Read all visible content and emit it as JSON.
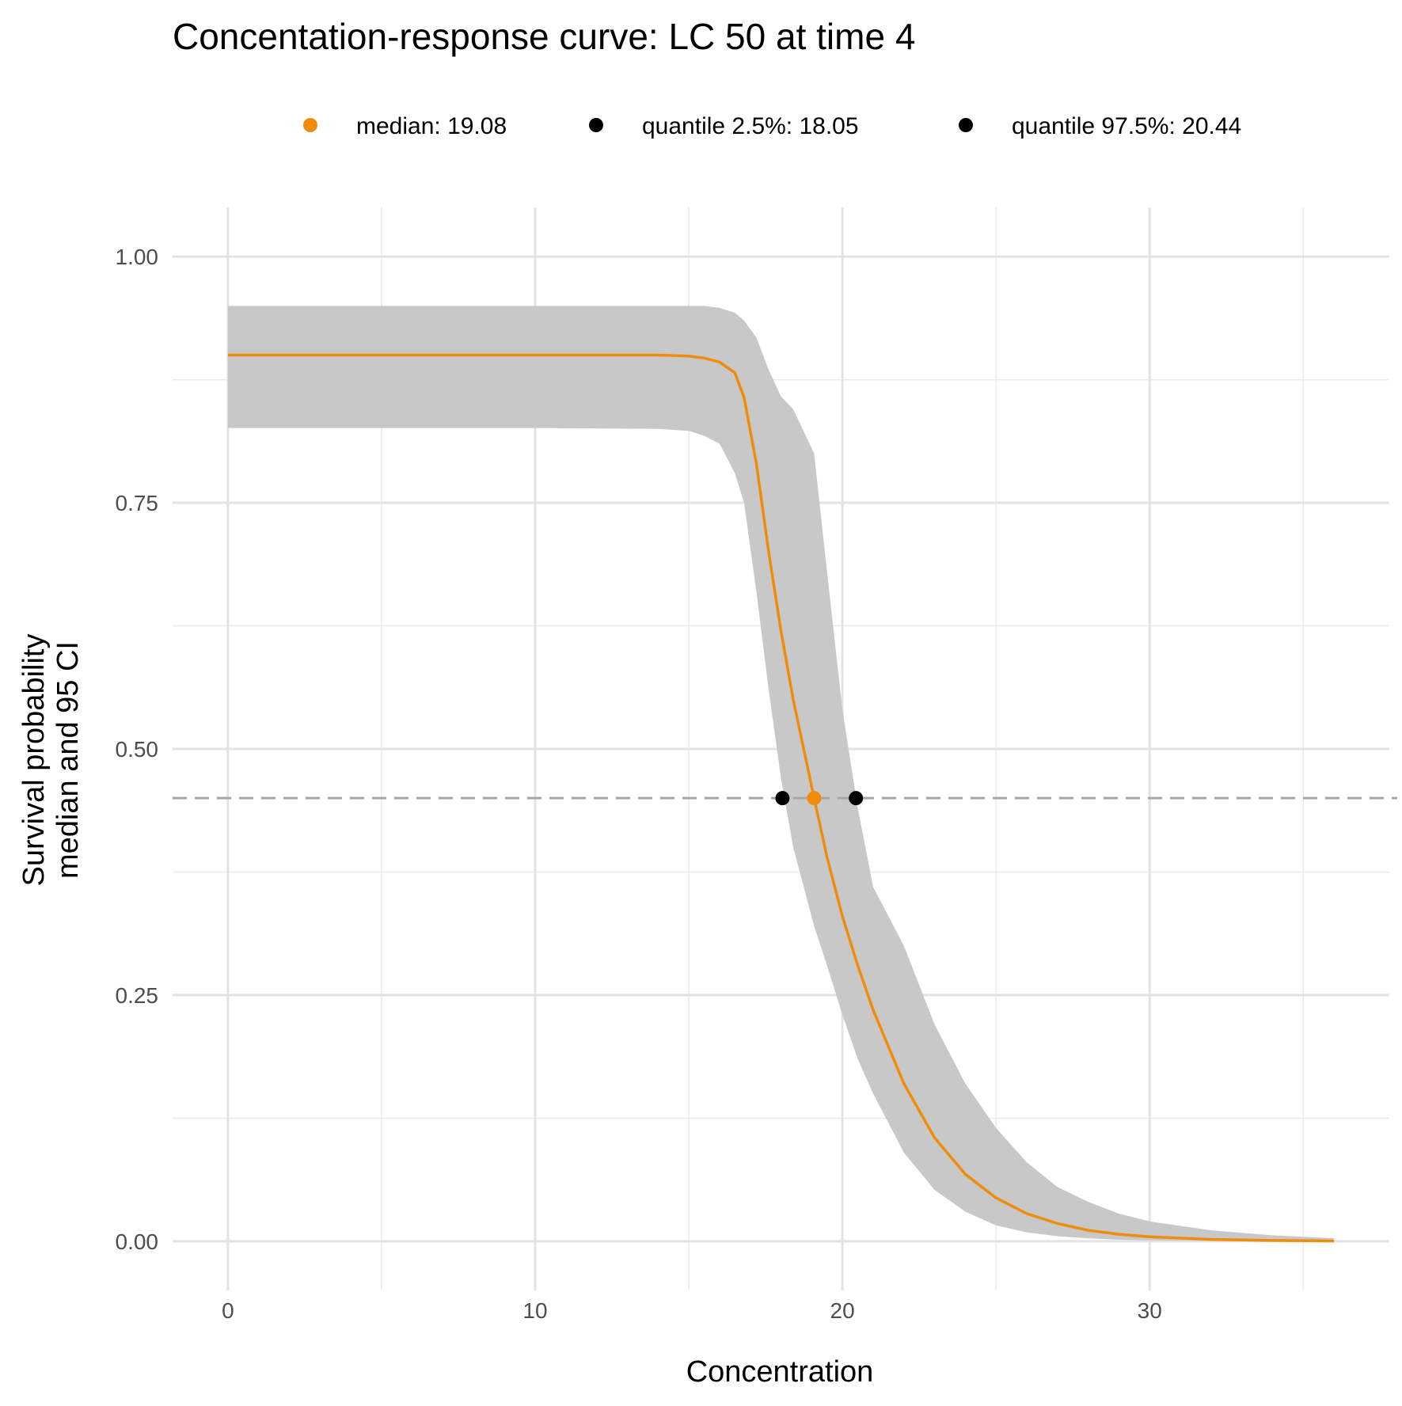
{
  "chart_data": {
    "type": "line",
    "title": "Concentation-response curve: LC 50  at time 4",
    "xlabel": "Concentration",
    "ylabel_lines": [
      "Survival probability",
      "median and 95 CI"
    ],
    "xlim": [
      -1.8,
      37.8
    ],
    "ylim": [
      -0.05,
      1.05
    ],
    "x_ticks": [
      0,
      10,
      20,
      30
    ],
    "x_tick_labels": [
      "0",
      "10",
      "20",
      "30"
    ],
    "y_ticks": [
      0,
      0.25,
      0.5,
      0.75,
      1
    ],
    "y_tick_labels": [
      "0.00",
      "0.25",
      "0.50",
      "0.75",
      "1.00"
    ],
    "grid": true,
    "legend_position": "top",
    "legend": [
      {
        "label": "median:  19.08",
        "color": "#f08c0a"
      },
      {
        "label": "quantile 2.5%:  18.05",
        "color": "#000000"
      },
      {
        "label": "quantile 97.5%:  20.44",
        "color": "#000000"
      }
    ],
    "median_curve": {
      "name": "median",
      "color": "#f08c0a",
      "x": [
        0,
        5,
        10,
        14,
        15,
        15.5,
        16,
        16.5,
        16.8,
        17.2,
        17.6,
        18.0,
        18.4,
        19.08,
        19.5,
        20,
        20.5,
        21,
        22,
        23,
        24,
        25,
        26,
        27,
        28,
        29,
        30,
        32,
        34,
        36
      ],
      "y": [
        0.9,
        0.9,
        0.9,
        0.9,
        0.899,
        0.897,
        0.893,
        0.882,
        0.857,
        0.79,
        0.7,
        0.62,
        0.55,
        0.45,
        0.39,
        0.33,
        0.28,
        0.235,
        0.16,
        0.105,
        0.068,
        0.044,
        0.028,
        0.018,
        0.011,
        0.007,
        0.0045,
        0.0018,
        0.0007,
        0.0002
      ]
    },
    "ci_band": {
      "color": "#c8c8c8",
      "x": [
        0,
        5,
        10,
        14,
        15,
        15.5,
        16,
        16.5,
        16.8,
        17.2,
        17.6,
        18.0,
        18.4,
        19.08,
        19.5,
        20,
        20.5,
        21,
        22,
        23,
        24,
        25,
        26,
        27,
        28,
        29,
        30,
        32,
        34,
        36
      ],
      "lower": [
        0.826,
        0.826,
        0.826,
        0.825,
        0.823,
        0.818,
        0.81,
        0.78,
        0.75,
        0.66,
        0.56,
        0.47,
        0.4,
        0.32,
        0.28,
        0.23,
        0.185,
        0.15,
        0.09,
        0.052,
        0.03,
        0.016,
        0.009,
        0.005,
        0.003,
        0.0015,
        0.0008,
        0.0002,
        0.0001,
        0.0
      ],
      "upper": [
        0.95,
        0.95,
        0.95,
        0.95,
        0.95,
        0.95,
        0.948,
        0.943,
        0.935,
        0.918,
        0.885,
        0.858,
        0.845,
        0.8,
        0.68,
        0.54,
        0.44,
        0.36,
        0.3,
        0.22,
        0.16,
        0.115,
        0.08,
        0.055,
        0.04,
        0.028,
        0.02,
        0.011,
        0.006,
        0.003
      ]
    },
    "reference_line": {
      "y": 0.45,
      "style": "dashed",
      "color": "#a6a6a6"
    },
    "points": [
      {
        "name": "quantile 2.5%",
        "x": 18.05,
        "y": 0.45,
        "color": "#000000"
      },
      {
        "name": "median",
        "x": 19.08,
        "y": 0.45,
        "color": "#f08c0a"
      },
      {
        "name": "quantile 97.5%",
        "x": 20.44,
        "y": 0.45,
        "color": "#000000"
      }
    ]
  }
}
